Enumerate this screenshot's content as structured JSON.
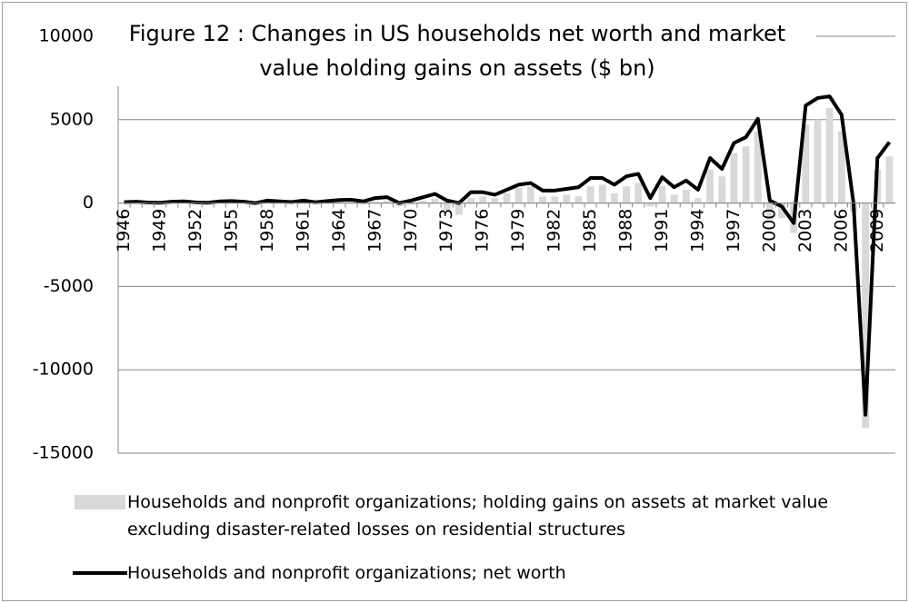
{
  "chart_data": {
    "type": "bar_line",
    "title": "Figure 12 : Changes in US households net worth and market value holding gains on assets ($ bn)",
    "categories": [
      "1946",
      null,
      null,
      "1949",
      null,
      null,
      "1952",
      null,
      null,
      "1955",
      null,
      null,
      "1958",
      null,
      null,
      "1961",
      null,
      null,
      "1964",
      null,
      null,
      "1967",
      null,
      null,
      "1970",
      null,
      null,
      "1973",
      null,
      null,
      "1976",
      null,
      null,
      "1979",
      null,
      null,
      "1982",
      null,
      null,
      "1985",
      null,
      null,
      "1988",
      null,
      null,
      "1991",
      null,
      null,
      "1994",
      null,
      null,
      "1997",
      null,
      null,
      "2000",
      null,
      null,
      "2003",
      null,
      null,
      "2006",
      null,
      null,
      "2009",
      null
    ],
    "series": [
      {
        "name": "Households and nonprofit organizations; holding gains on assets at market value excluding disaster-related losses on residential structures",
        "color": "#d9d9d9",
        "kind": "bar",
        "values": [
          30,
          50,
          20,
          10,
          60,
          80,
          20,
          10,
          80,
          90,
          50,
          -20,
          100,
          60,
          30,
          100,
          20,
          80,
          120,
          130,
          -100,
          100,
          150,
          -200,
          -100,
          150,
          250,
          -400,
          -700,
          300,
          400,
          300,
          600,
          900,
          1000,
          400,
          400,
          500,
          400,
          1000,
          1100,
          600,
          1000,
          1200,
          -200,
          1000,
          500,
          800,
          300,
          2000,
          1600,
          3000,
          3400,
          4300,
          -1000,
          -900,
          -1800,
          4700,
          5000,
          5700,
          4300,
          -500,
          -13500,
          2000,
          2800
        ]
      },
      {
        "name": "Households and nonprofit organizations; net worth",
        "color": "#000000",
        "kind": "line",
        "values": [
          50,
          80,
          30,
          20,
          80,
          100,
          40,
          20,
          100,
          120,
          80,
          0,
          150,
          100,
          60,
          150,
          50,
          120,
          180,
          200,
          100,
          300,
          350,
          0,
          150,
          350,
          550,
          150,
          0,
          650,
          650,
          500,
          800,
          1100,
          1200,
          750,
          750,
          850,
          950,
          1500,
          1500,
          1100,
          1600,
          1750,
          300,
          1550,
          950,
          1350,
          800,
          2700,
          2050,
          3600,
          3950,
          5050,
          150,
          -200,
          -1200,
          5850,
          6300,
          6400,
          5300,
          0,
          -12700,
          2700,
          3650
        ]
      }
    ],
    "ylim": [
      -15000,
      10000
    ],
    "yticks": [
      -15000,
      -10000,
      -5000,
      0,
      5000,
      10000
    ],
    "grid": true
  }
}
